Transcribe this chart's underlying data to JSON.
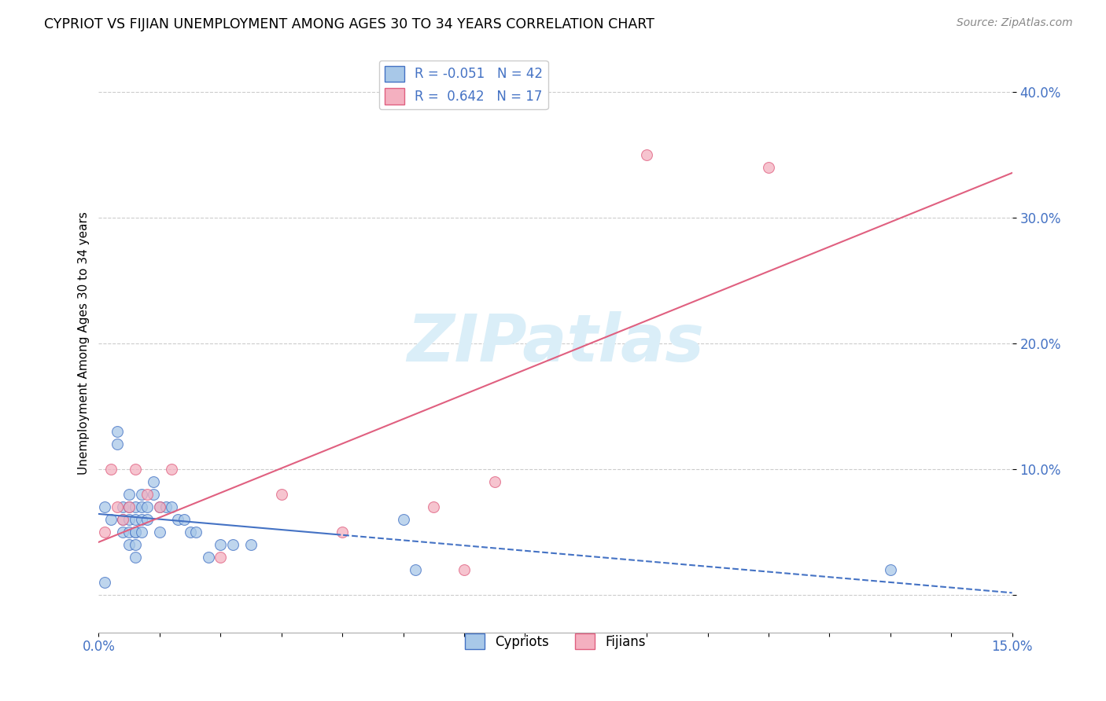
{
  "title": "CYPRIOT VS FIJIAN UNEMPLOYMENT AMONG AGES 30 TO 34 YEARS CORRELATION CHART",
  "source": "Source: ZipAtlas.com",
  "ylabel": "Unemployment Among Ages 30 to 34 years",
  "xlim": [
    0.0,
    0.15
  ],
  "ylim": [
    -0.03,
    0.43
  ],
  "yticks": [
    0.0,
    0.1,
    0.2,
    0.3,
    0.4
  ],
  "ytick_labels": [
    "",
    "10.0%",
    "20.0%",
    "30.0%",
    "40.0%"
  ],
  "cypriot_R": -0.051,
  "cypriot_N": 42,
  "fijian_R": 0.642,
  "fijian_N": 17,
  "cypriot_color": "#a8c8e8",
  "fijian_color": "#f4b0c0",
  "cypriot_line_color": "#4472c4",
  "fijian_line_color": "#e06080",
  "watermark_color": "#daeef8",
  "cypriot_x": [
    0.001,
    0.001,
    0.002,
    0.003,
    0.003,
    0.004,
    0.004,
    0.004,
    0.005,
    0.005,
    0.005,
    0.005,
    0.005,
    0.006,
    0.006,
    0.006,
    0.006,
    0.006,
    0.006,
    0.007,
    0.007,
    0.007,
    0.007,
    0.008,
    0.008,
    0.009,
    0.009,
    0.01,
    0.01,
    0.011,
    0.012,
    0.013,
    0.014,
    0.015,
    0.016,
    0.018,
    0.02,
    0.022,
    0.025,
    0.05,
    0.052,
    0.13
  ],
  "cypriot_y": [
    0.01,
    0.07,
    0.06,
    0.13,
    0.12,
    0.07,
    0.06,
    0.05,
    0.08,
    0.07,
    0.06,
    0.05,
    0.04,
    0.07,
    0.06,
    0.05,
    0.05,
    0.04,
    0.03,
    0.08,
    0.07,
    0.06,
    0.05,
    0.07,
    0.06,
    0.08,
    0.09,
    0.07,
    0.05,
    0.07,
    0.07,
    0.06,
    0.06,
    0.05,
    0.05,
    0.03,
    0.04,
    0.04,
    0.04,
    0.06,
    0.02,
    0.02
  ],
  "fijian_x": [
    0.001,
    0.002,
    0.003,
    0.004,
    0.005,
    0.006,
    0.008,
    0.01,
    0.012,
    0.02,
    0.03,
    0.04,
    0.055,
    0.06,
    0.065,
    0.09,
    0.11
  ],
  "fijian_y": [
    0.05,
    0.1,
    0.07,
    0.06,
    0.07,
    0.1,
    0.08,
    0.07,
    0.1,
    0.03,
    0.08,
    0.05,
    0.07,
    0.02,
    0.09,
    0.35,
    0.34
  ]
}
